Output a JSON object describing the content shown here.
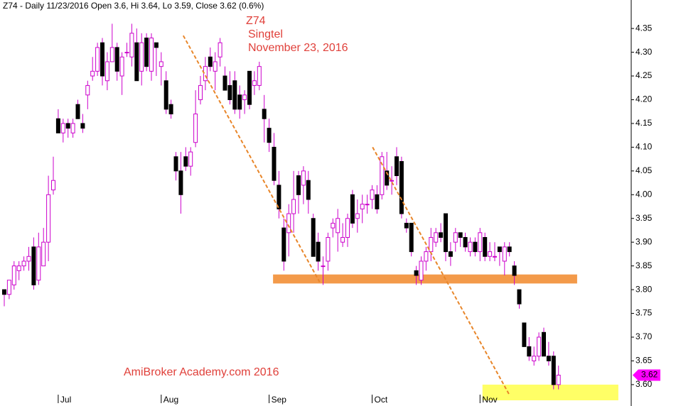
{
  "chart_data": {
    "type": "candlestick",
    "title": "Z74 - Daily 11/23/2016 Open 3.6, Hi 3.64, Lo 3.59, Close 3.62 (0.6%)",
    "annotations": [
      "Z74",
      "Singtel",
      "November 23, 2016",
      "AmiBroker Academy.com  2016"
    ],
    "categories": [
      null,
      null,
      null,
      null,
      null,
      null,
      null,
      null,
      null,
      null,
      null,
      "Jul",
      null,
      null,
      null,
      null,
      null,
      null,
      null,
      null,
      null,
      null,
      null,
      null,
      null,
      null,
      null,
      null,
      null,
      null,
      null,
      null,
      "Aug",
      null,
      null,
      null,
      null,
      null,
      null,
      null,
      null,
      null,
      null,
      null,
      null,
      null,
      null,
      null,
      null,
      null,
      null,
      null,
      null,
      null,
      "Sep",
      null,
      null,
      null,
      null,
      null,
      null,
      null,
      null,
      null,
      null,
      null,
      null,
      null,
      null,
      null,
      null,
      null,
      null,
      null,
      null,
      "Oct",
      null,
      null,
      null,
      null,
      null,
      null,
      null,
      null,
      null,
      null,
      null,
      null,
      null,
      null,
      null,
      null,
      null,
      null,
      null,
      null,
      null,
      "Nov",
      null,
      null,
      null,
      null,
      null,
      null,
      null,
      null,
      null,
      null,
      null,
      null,
      null,
      null,
      null,
      null
    ],
    "open": [
      3.8,
      3.79,
      3.81,
      3.84,
      3.85,
      3.86,
      3.89,
      3.82,
      3.85,
      3.9,
      4.01,
      4.16,
      4.13,
      4.15,
      4.13,
      4.19,
      4.15,
      4.21,
      4.25,
      4.26,
      4.32,
      4.24,
      4.28,
      4.31,
      4.25,
      4.3,
      4.29,
      4.32,
      4.26,
      4.33,
      4.26,
      4.32,
      4.27,
      4.24,
      4.19,
      4.08,
      4.05,
      4.08,
      4.06,
      4.11,
      4.2,
      4.24,
      4.29,
      4.26,
      4.29,
      4.25,
      4.23,
      4.24,
      4.21,
      4.2,
      4.26,
      4.23,
      4.23,
      4.18,
      4.14,
      4.1,
      4.02,
      3.93,
      3.92,
      3.96,
      4.04,
      4.02,
      4.03,
      3.95,
      3.9,
      3.85,
      3.86,
      3.93,
      3.92,
      3.9,
      3.91,
      4.0,
      3.95,
      3.97,
      3.98,
      3.99,
      4.0,
      4.0,
      4.05,
      4.03,
      4.08,
      4.07,
      3.94,
      3.94,
      3.84,
      3.82,
      3.86,
      3.88,
      3.9,
      3.92,
      3.96,
      3.88,
      3.9,
      3.92,
      3.91,
      3.88,
      3.9,
      3.88,
      3.91,
      3.87,
      3.87,
      3.89,
      3.86,
      3.89,
      3.85,
      3.8,
      3.73,
      3.68,
      3.65,
      3.66,
      3.71,
      3.66,
      3.66,
      3.6
    ],
    "high": [
      3.8,
      3.82,
      3.86,
      3.86,
      3.87,
      3.89,
      3.91,
      3.92,
      3.93,
      4.04,
      4.08,
      4.18,
      4.16,
      4.16,
      4.16,
      4.2,
      4.17,
      4.24,
      4.29,
      4.32,
      4.33,
      4.3,
      4.36,
      4.32,
      4.3,
      4.32,
      4.36,
      4.35,
      4.34,
      4.34,
      4.34,
      4.32,
      4.3,
      4.26,
      4.2,
      4.09,
      4.09,
      4.1,
      4.1,
      4.22,
      4.25,
      4.29,
      4.31,
      4.3,
      4.33,
      4.27,
      4.26,
      4.26,
      4.23,
      4.22,
      4.26,
      4.26,
      4.28,
      4.21,
      4.16,
      4.13,
      4.05,
      3.95,
      3.98,
      4.05,
      4.05,
      4.06,
      4.05,
      3.96,
      3.92,
      3.87,
      3.92,
      3.95,
      3.97,
      3.94,
      3.96,
      4.01,
      3.99,
      4.0,
      4.0,
      4.02,
      4.02,
      4.09,
      4.09,
      4.06,
      4.1,
      4.08,
      3.95,
      3.94,
      3.85,
      3.87,
      3.89,
      3.93,
      3.93,
      3.94,
      3.96,
      3.9,
      3.93,
      3.92,
      3.92,
      3.91,
      3.91,
      3.93,
      3.92,
      3.9,
      3.9,
      3.89,
      3.9,
      3.9,
      3.86,
      3.8,
      3.73,
      3.7,
      3.68,
      3.71,
      3.72,
      3.69,
      3.67,
      3.64
    ],
    "low": [
      3.765,
      3.78,
      3.8,
      3.82,
      3.84,
      3.84,
      3.8,
      3.81,
      3.85,
      3.86,
      4.0,
      4.13,
      4.11,
      4.12,
      4.12,
      4.16,
      4.13,
      4.18,
      4.24,
      4.25,
      4.23,
      4.22,
      4.28,
      4.24,
      4.21,
      4.29,
      4.27,
      4.24,
      4.23,
      4.26,
      4.24,
      4.25,
      4.23,
      4.17,
      4.16,
      4.03,
      3.96,
      4.05,
      4.04,
      4.1,
      4.19,
      4.22,
      4.26,
      4.22,
      4.27,
      4.22,
      4.19,
      4.17,
      4.16,
      4.17,
      4.18,
      4.21,
      4.22,
      4.11,
      4.09,
      4.02,
      3.95,
      3.84,
      3.87,
      3.92,
      3.96,
      3.98,
      3.96,
      3.87,
      3.84,
      3.81,
      3.84,
      3.91,
      3.88,
      3.89,
      3.89,
      3.93,
      3.92,
      3.94,
      3.96,
      3.97,
      3.96,
      3.99,
      4.01,
      4.0,
      4.02,
      3.95,
      3.92,
      3.87,
      3.81,
      3.81,
      3.84,
      3.86,
      3.89,
      3.9,
      3.86,
      3.85,
      3.88,
      3.89,
      3.88,
      3.87,
      3.87,
      3.86,
      3.86,
      3.86,
      3.86,
      3.85,
      3.83,
      3.87,
      3.81,
      3.76,
      3.68,
      3.65,
      3.64,
      3.65,
      3.66,
      3.64,
      3.59,
      3.59
    ],
    "close": [
      3.79,
      3.82,
      3.85,
      3.85,
      3.86,
      3.87,
      3.81,
      3.89,
      3.9,
      4.0,
      4.03,
      4.13,
      4.15,
      4.14,
      4.15,
      4.16,
      4.14,
      4.23,
      4.26,
      4.31,
      4.25,
      4.28,
      4.31,
      4.26,
      4.29,
      4.3,
      4.34,
      4.24,
      4.32,
      4.27,
      4.33,
      4.31,
      4.28,
      4.18,
      4.17,
      4.05,
      4.0,
      4.06,
      4.09,
      4.17,
      4.23,
      4.27,
      4.27,
      4.28,
      4.32,
      4.22,
      4.2,
      4.18,
      4.18,
      4.21,
      4.19,
      4.24,
      4.27,
      4.16,
      4.11,
      4.03,
      3.97,
      3.86,
      3.96,
      3.99,
      4.0,
      4.05,
      3.99,
      3.87,
      3.86,
      3.85,
      3.91,
      3.94,
      3.95,
      3.91,
      3.95,
      3.94,
      3.96,
      3.98,
      3.98,
      4.01,
      3.97,
      4.08,
      4.02,
      4.03,
      4.04,
      3.96,
      3.93,
      3.88,
      3.83,
      3.86,
      3.88,
      3.91,
      3.92,
      3.91,
      3.88,
      3.87,
      3.92,
      3.91,
      3.89,
      3.9,
      3.88,
      3.92,
      3.87,
      3.88,
      3.87,
      3.88,
      3.89,
      3.88,
      3.83,
      3.77,
      3.68,
      3.66,
      3.66,
      3.7,
      3.66,
      3.65,
      3.6,
      3.62
    ],
    "up_color": "#ffffff",
    "down_color": "#000000",
    "wick_color": "#cc00cc",
    "tag_color": "#ff00ff",
    "bands": [
      {
        "color": "#f39a4a",
        "x": [
          54.8,
          116.8
        ],
        "y": [
          3.813,
          3.832
        ]
      },
      {
        "color": "#ffff66",
        "x": [
          97.5,
          125.2
        ],
        "y": [
          3.567,
          3.6
        ]
      }
    ],
    "trendlines": [
      {
        "color": "#e8862a",
        "x": [
          36.5,
          64.3
        ],
        "y": [
          4.335,
          3.816
        ]
      },
      {
        "color": "#e8862a",
        "x": [
          75.1,
          102.9
        ],
        "y": [
          4.1,
          3.58
        ]
      }
    ],
    "ylim": [
      3.555,
      4.41
    ],
    "yticks": [
      {
        "value": 3.6,
        "label": "3.60"
      },
      {
        "value": 3.65,
        "label": "3.65"
      },
      {
        "value": 3.7,
        "label": "3.70"
      },
      {
        "value": 3.75,
        "label": "3.75"
      },
      {
        "value": 3.8,
        "label": "3.80"
      },
      {
        "value": 3.85,
        "label": "3.85"
      },
      {
        "value": 3.9,
        "label": "3.90"
      },
      {
        "value": 3.95,
        "label": "3.95"
      },
      {
        "value": 4.0,
        "label": "4.00"
      },
      {
        "value": 4.05,
        "label": "4.05"
      },
      {
        "value": 4.1,
        "label": "4.10"
      },
      {
        "value": 4.15,
        "label": "4.15"
      },
      {
        "value": 4.2,
        "label": "4.20"
      },
      {
        "value": 4.25,
        "label": "4.25"
      },
      {
        "value": 4.3,
        "label": "4.30"
      },
      {
        "value": 4.35,
        "label": "4.35"
      }
    ]
  }
}
